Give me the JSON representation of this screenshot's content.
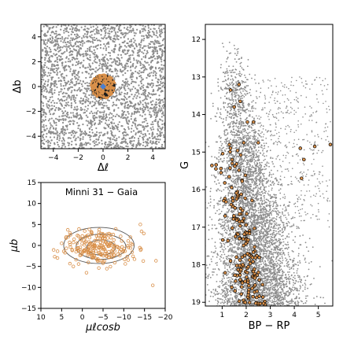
{
  "chart_data": [
    {
      "type": "scatter",
      "panel": "sky",
      "xlabel": "Δℓ",
      "ylabel": "Δb",
      "xlim": [
        -5,
        5
      ],
      "ylim": [
        -5,
        5
      ],
      "xticks": [
        "−4",
        "−2",
        "0",
        "2",
        "4"
      ],
      "yticks": [
        "−4",
        "−2",
        "0",
        "2",
        "4"
      ],
      "field_color": "#8c8c8c",
      "member_color": "#d9904a",
      "member_edge": "#000000",
      "cluster_radius": 1.0,
      "center_marker_color": "#4a7fd0",
      "field_points": "dense uniform grey field covering full panel",
      "members": "dense orange points inside circle of radius ~1 centred at (0,0)"
    },
    {
      "type": "scatter",
      "panel": "proper-motion",
      "title": "Minni 31  −  Gaia",
      "xlabel": "μℓcosb",
      "ylabel": "μb",
      "xlim": [
        10,
        -20
      ],
      "ylim": [
        -15,
        15
      ],
      "xticks": [
        "10",
        "5",
        "0",
        "−5",
        "−10",
        "−15",
        "−20"
      ],
      "yticks": [
        "−15",
        "−10",
        "−5",
        "0",
        "5",
        "10",
        "15"
      ],
      "member_color": "#d9904a",
      "contour_color": "#555555",
      "contours": [
        {
          "cx": -4.5,
          "cy": -0.5,
          "rx": 3.5,
          "ry": 1.8
        },
        {
          "cx": -4.5,
          "cy": -0.3,
          "rx": 6.0,
          "ry": 3.0
        },
        {
          "cx": -4.0,
          "cy": 0.0,
          "rx": 8.5,
          "ry": 4.3
        }
      ],
      "center": [
        -4.5,
        -0.5
      ],
      "spread": [
        4.0,
        3.0
      ],
      "outliers": [
        [
          -1,
          -6.5
        ],
        [
          6,
          -3
        ],
        [
          -17,
          -9.5
        ],
        [
          -14,
          5
        ],
        [
          5,
          0.5
        ],
        [
          3,
          3
        ]
      ]
    },
    {
      "type": "scatter",
      "panel": "cmd",
      "xlabel": "BP − RP",
      "ylabel": "G",
      "xlim": [
        0.3,
        5.6
      ],
      "ylim": [
        19.1,
        11.6
      ],
      "xticks": [
        "1",
        "2",
        "3",
        "4",
        "5"
      ],
      "yticks": [
        "12",
        "13",
        "14",
        "15",
        "16",
        "17",
        "18",
        "19"
      ],
      "field_color": "#8c8c8c",
      "member_color": "#d9904a",
      "member_edge": "#000000",
      "members_sample": [
        [
          0.55,
          11.55
        ],
        [
          1.35,
          13.35
        ],
        [
          1.5,
          13.8
        ],
        [
          1.7,
          13.2
        ],
        [
          1.75,
          13.65
        ],
        [
          2.05,
          14.2
        ],
        [
          2.3,
          14.2
        ],
        [
          1.3,
          14.8
        ],
        [
          1.9,
          14.75
        ],
        [
          2.5,
          14.75
        ],
        [
          4.25,
          14.9
        ],
        [
          4.85,
          14.85
        ],
        [
          5.5,
          14.8
        ],
        [
          4.4,
          15.2
        ],
        [
          4.3,
          15.7
        ],
        [
          1.4,
          18.6
        ],
        [
          1.35,
          17.9
        ]
      ]
    }
  ]
}
